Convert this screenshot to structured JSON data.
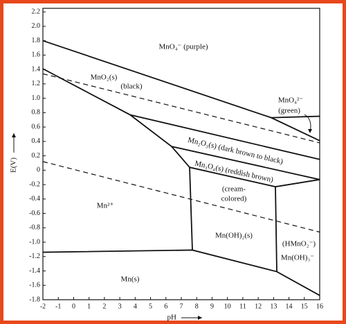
{
  "chart_data": {
    "type": "line",
    "x_label": "pH",
    "y_label": "E(V)",
    "xlim": [
      -2,
      16
    ],
    "ylim": [
      -1.8,
      2.25
    ],
    "xticks": [
      -2,
      -1,
      0,
      1,
      2,
      3,
      4,
      5,
      6,
      7,
      8,
      9,
      10,
      11,
      12,
      13,
      14,
      15,
      16
    ],
    "yticks": [
      -1.8,
      -1.6,
      -1.4,
      -1.2,
      {
        "value": -1,
        "label": "-1.0"
      },
      -0.8,
      -0.6,
      -0.4,
      -0.2,
      0,
      0.2,
      0.4,
      0.6,
      0.8,
      {
        "value": 1,
        "label": "1.0"
      },
      1.2,
      1.4,
      1.6,
      1.8,
      {
        "value": 2,
        "label": "2.0"
      },
      2.2
    ],
    "series": [
      {
        "color": "#111111",
        "style": "solid",
        "x": [
          -2,
          12.85,
          16
        ],
        "values": [
          1.8,
          0.73,
          0.41
        ]
      },
      {
        "color": "#111111",
        "style": "solid",
        "x": [
          12.85,
          16
        ],
        "values": [
          0.73,
          0.75
        ]
      },
      {
        "color": "#111111",
        "style": "solid",
        "x": [
          -2,
          3.67,
          16
        ],
        "values": [
          1.41,
          0.77,
          0.15
        ]
      },
      {
        "color": "#111111",
        "style": "solid",
        "x": [
          3.67,
          6.37,
          7.54
        ],
        "values": [
          0.77,
          0.33,
          0.04
        ]
      },
      {
        "color": "#111111",
        "style": "solid",
        "x": [
          6.37,
          16
        ],
        "values": [
          0.33,
          -0.13
        ]
      },
      {
        "color": "#111111",
        "style": "solid",
        "x": [
          7.54,
          13.12,
          16
        ],
        "values": [
          0.04,
          -0.23,
          -0.13
        ]
      },
      {
        "color": "#111111",
        "style": "solid",
        "x": [
          7.54,
          7.72
        ],
        "values": [
          0.04,
          -1.11
        ]
      },
      {
        "color": "#111111",
        "style": "solid",
        "x": [
          13.12,
          13.21
        ],
        "values": [
          -0.23,
          -1.41
        ]
      },
      {
        "color": "#111111",
        "style": "solid",
        "x": [
          -2,
          7.72,
          13.21,
          16
        ],
        "values": [
          -1.14,
          -1.11,
          -1.41,
          -1.74
        ]
      },
      {
        "color": "#111111",
        "style": "dashed",
        "x": [
          -2,
          16
        ],
        "values": [
          1.34,
          0.38
        ]
      },
      {
        "color": "#111111",
        "style": "dashed",
        "x": [
          -2,
          16
        ],
        "values": [
          0.12,
          -0.86
        ]
      }
    ],
    "annotations": [
      "MnO₄⁻ (purple)",
      "MnO₂(s)",
      "(black)",
      "MnO₄²⁻",
      "(green)",
      "Mn₂O₃(s) (dark brown to black)",
      "Mn₃O₄(s) (reddish brown)",
      "(cream-",
      "colored)",
      "Mn²⁺",
      "Mn(OH)₂(s)",
      "(HMnO₂⁻)",
      "Mn(OH)₃⁻",
      "Mn(s)"
    ]
  }
}
